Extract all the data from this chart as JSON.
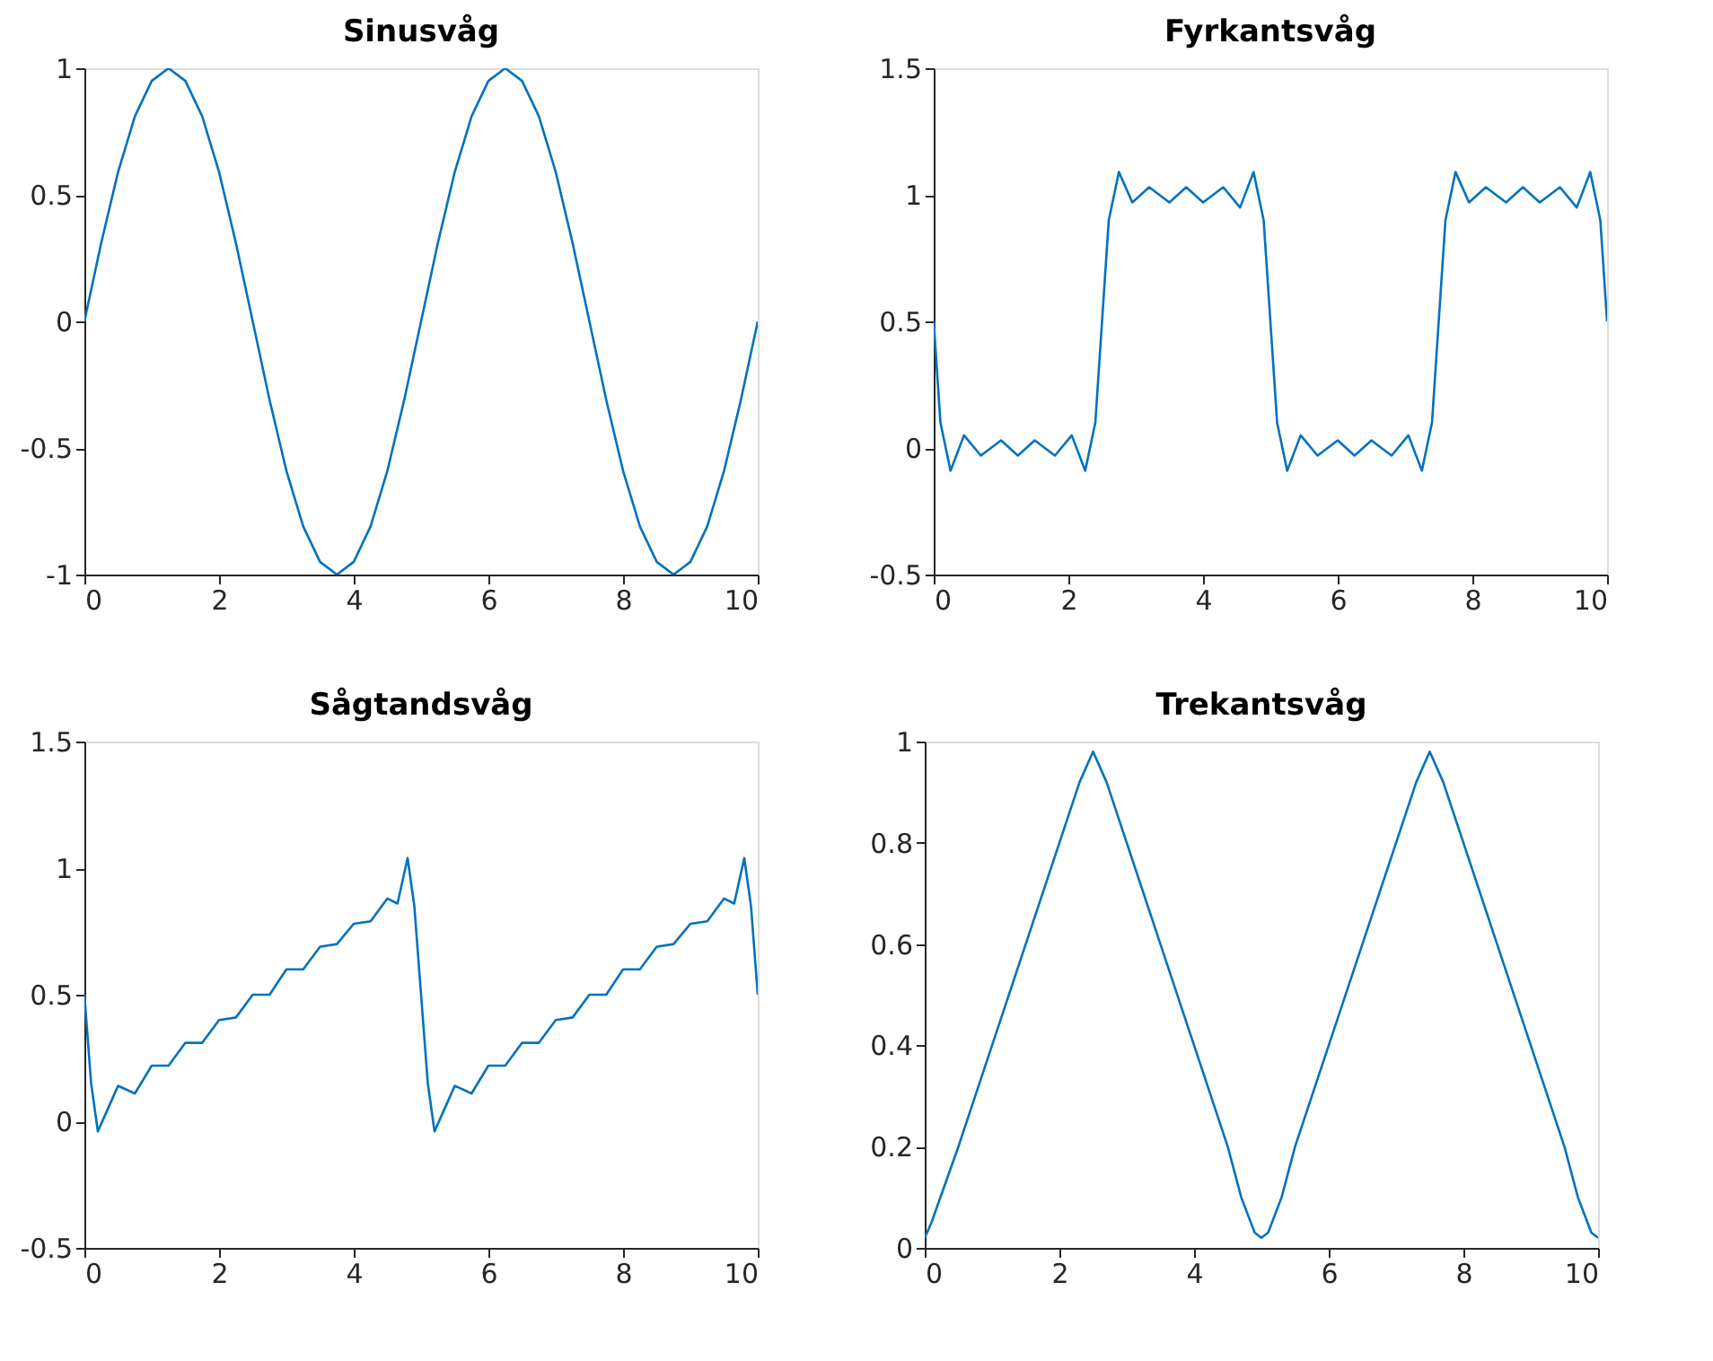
{
  "chart_data": [
    {
      "type": "line",
      "title": "Sinusvåg",
      "xlim": [
        0,
        10
      ],
      "xticks": [
        0,
        2,
        4,
        6,
        8,
        10
      ],
      "ylim": [
        -1,
        1
      ],
      "yticks": [
        -1,
        -0.5,
        0,
        0.5,
        1
      ],
      "grid": false,
      "x": [
        0,
        0.25,
        0.5,
        0.75,
        1,
        1.25,
        1.5,
        1.75,
        2,
        2.25,
        2.5,
        2.75,
        3,
        3.25,
        3.5,
        3.75,
        4,
        4.25,
        4.5,
        4.75,
        5,
        5.25,
        5.5,
        5.75,
        6,
        6.25,
        6.5,
        6.75,
        7,
        7.25,
        7.5,
        7.75,
        8,
        8.25,
        8.5,
        8.75,
        9,
        9.25,
        9.5,
        9.75,
        10
      ],
      "series": [
        {
          "color": "#0072bd",
          "values": [
            0,
            0.31,
            0.59,
            0.81,
            0.95,
            1,
            0.95,
            0.81,
            0.59,
            0.31,
            0,
            -0.31,
            -0.59,
            -0.81,
            -0.95,
            -1,
            -0.95,
            -0.81,
            -0.59,
            -0.31,
            0,
            0.31,
            0.59,
            0.81,
            0.95,
            1,
            0.95,
            0.81,
            0.59,
            0.31,
            0,
            -0.31,
            -0.59,
            -0.81,
            -0.95,
            -1,
            -0.95,
            -0.81,
            -0.59,
            -0.31,
            0
          ]
        }
      ]
    },
    {
      "type": "line",
      "title": "Fyrkantsvåg",
      "xlim": [
        0,
        10
      ],
      "xticks": [
        0,
        2,
        4,
        6,
        8,
        10
      ],
      "ylim": [
        -0.5,
        1.5
      ],
      "yticks": [
        -0.5,
        0,
        0.5,
        1,
        1.5
      ],
      "grid": false,
      "x": [
        0,
        0.1,
        0.25,
        0.45,
        0.7,
        1,
        1.25,
        1.5,
        1.8,
        2.05,
        2.25,
        2.4,
        2.5,
        2.6,
        2.75,
        2.95,
        3.2,
        3.5,
        3.75,
        4,
        4.3,
        4.55,
        4.75,
        4.9,
        5,
        5.1,
        5.25,
        5.45,
        5.7,
        6,
        6.25,
        6.5,
        6.8,
        7.05,
        7.25,
        7.4,
        7.5,
        7.6,
        7.75,
        7.95,
        8.2,
        8.5,
        8.75,
        9,
        9.3,
        9.55,
        9.75,
        9.9,
        10
      ],
      "series": [
        {
          "color": "#0072bd",
          "values": [
            0.5,
            0.1,
            -0.09,
            0.05,
            -0.03,
            0.03,
            -0.03,
            0.03,
            -0.03,
            0.05,
            -0.09,
            0.1,
            0.5,
            0.9,
            1.09,
            0.97,
            1.03,
            0.97,
            1.03,
            0.97,
            1.03,
            0.95,
            1.09,
            0.9,
            0.5,
            0.1,
            -0.09,
            0.05,
            -0.03,
            0.03,
            -0.03,
            0.03,
            -0.03,
            0.05,
            -0.09,
            0.1,
            0.5,
            0.9,
            1.09,
            0.97,
            1.03,
            0.97,
            1.03,
            0.97,
            1.03,
            0.95,
            1.09,
            0.9,
            0.5
          ]
        }
      ]
    },
    {
      "type": "line",
      "title": "Sågtandsvåg",
      "xlim": [
        0,
        10
      ],
      "xticks": [
        0,
        2,
        4,
        6,
        8,
        10
      ],
      "ylim": [
        -0.5,
        1.5
      ],
      "yticks": [
        -0.5,
        0,
        0.5,
        1,
        1.5
      ],
      "grid": false,
      "x": [
        0,
        0.1,
        0.2,
        0.35,
        0.5,
        0.75,
        1,
        1.25,
        1.5,
        1.75,
        2,
        2.25,
        2.5,
        2.75,
        3,
        3.25,
        3.5,
        3.75,
        4,
        4.25,
        4.5,
        4.65,
        4.8,
        4.9,
        5,
        5.1,
        5.2,
        5.35,
        5.5,
        5.75,
        6,
        6.25,
        6.5,
        6.75,
        7,
        7.25,
        7.5,
        7.75,
        8,
        8.25,
        8.5,
        8.75,
        9,
        9.25,
        9.5,
        9.65,
        9.8,
        9.9,
        10
      ],
      "series": [
        {
          "color": "#0072bd",
          "values": [
            0.5,
            0.15,
            -0.04,
            0.05,
            0.14,
            0.11,
            0.22,
            0.22,
            0.31,
            0.31,
            0.4,
            0.41,
            0.5,
            0.5,
            0.6,
            0.6,
            0.69,
            0.7,
            0.78,
            0.79,
            0.88,
            0.86,
            1.04,
            0.85,
            0.5,
            0.15,
            -0.04,
            0.05,
            0.14,
            0.11,
            0.22,
            0.22,
            0.31,
            0.31,
            0.4,
            0.41,
            0.5,
            0.5,
            0.6,
            0.6,
            0.69,
            0.7,
            0.78,
            0.79,
            0.88,
            0.86,
            1.04,
            0.85,
            0.5
          ]
        }
      ]
    },
    {
      "type": "line",
      "title": "Trekantsvåg",
      "xlim": [
        0,
        10
      ],
      "xticks": [
        0,
        2,
        4,
        6,
        8,
        10
      ],
      "ylim": [
        0,
        1
      ],
      "yticks": [
        0,
        0.2,
        0.4,
        0.6,
        0.8,
        1
      ],
      "grid": false,
      "x": [
        0,
        0.1,
        0.5,
        1,
        1.5,
        2,
        2.3,
        2.5,
        2.7,
        3,
        3.5,
        4,
        4.5,
        4.7,
        4.9,
        5,
        5.1,
        5.3,
        5.5,
        6,
        6.5,
        7,
        7.3,
        7.5,
        7.7,
        8,
        8.5,
        9,
        9.5,
        9.7,
        9.9,
        10
      ],
      "series": [
        {
          "color": "#0072bd",
          "values": [
            0.02,
            0.05,
            0.2,
            0.4,
            0.6,
            0.8,
            0.92,
            0.98,
            0.92,
            0.8,
            0.6,
            0.4,
            0.2,
            0.1,
            0.03,
            0.02,
            0.03,
            0.1,
            0.2,
            0.4,
            0.6,
            0.8,
            0.92,
            0.98,
            0.92,
            0.8,
            0.6,
            0.4,
            0.2,
            0.1,
            0.03,
            0.02
          ]
        }
      ]
    }
  ]
}
